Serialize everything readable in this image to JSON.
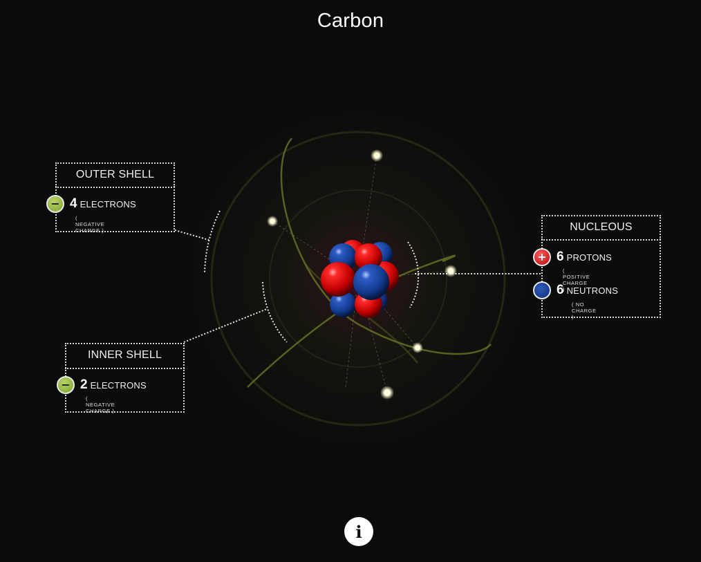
{
  "title": "Carbon",
  "outer_shell": {
    "heading": "OUTER SHELL",
    "badge_symbol": "−",
    "count": "4",
    "unit": "ELECTRONS",
    "charge": "( NEGATIVE CHARGE )",
    "icon": "electron-minus-icon"
  },
  "inner_shell": {
    "heading": "INNER SHELL",
    "badge_symbol": "−",
    "count": "2",
    "unit": "ELECTRONS",
    "charge": "( NEGATIVE CHARGE )",
    "icon": "electron-minus-icon"
  },
  "nucleus": {
    "heading": "NUCLEOUS",
    "protons": {
      "badge_symbol": "+",
      "count": "6",
      "unit": "PROTONS",
      "charge": "( POSITIVE CHARGE )",
      "icon": "proton-plus-icon"
    },
    "neutrons": {
      "count": "6",
      "unit": "NEUTRONS",
      "charge": "( NO CHARGE )",
      "icon": "neutron-icon"
    }
  },
  "info_button": {
    "label": "i",
    "icon": "info-icon"
  },
  "colors": {
    "background": "#0b0b0b",
    "electron": "#fffbe0",
    "electron_badge": "#8fb13a",
    "proton": "#e00a0a",
    "neutron": "#12388f",
    "orbit": "#6b7a2a"
  }
}
